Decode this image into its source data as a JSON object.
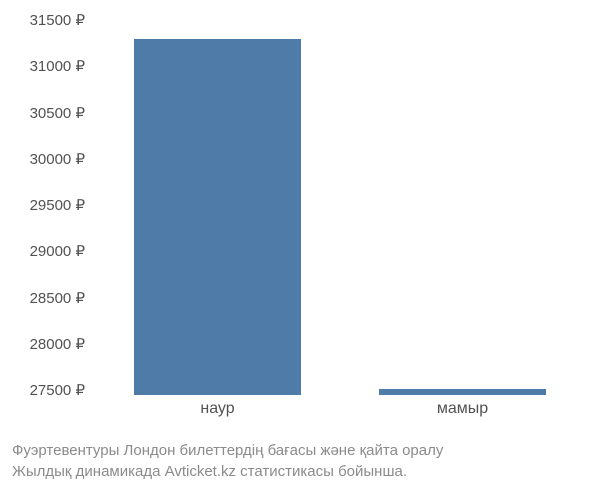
{
  "chart": {
    "type": "bar",
    "y_min": 27500,
    "y_max": 31500,
    "y_step": 500,
    "y_ticks": [
      31500,
      31000,
      30500,
      30000,
      29500,
      29000,
      28500,
      28000,
      27500
    ],
    "y_suffix": " ₽",
    "categories": [
      "наур",
      "мамыр"
    ],
    "values": [
      31350,
      27560
    ],
    "bar_color": "#4f7ba8",
    "bar_width_pct": 34,
    "bar_positions_pct": [
      25,
      75
    ],
    "axis_label_color": "#525252",
    "axis_label_fontsize": 15,
    "x_label_fontsize": 16,
    "caption_line1": "Фуэртевентуры Лондон билеттердің бағасы және қайта оралу",
    "caption_line2": "Жылдық динамикада Avticket.kz статистикасы бойынша.",
    "caption_color": "#8b8b8b",
    "caption_fontsize": 15,
    "background_color": "#ffffff"
  }
}
